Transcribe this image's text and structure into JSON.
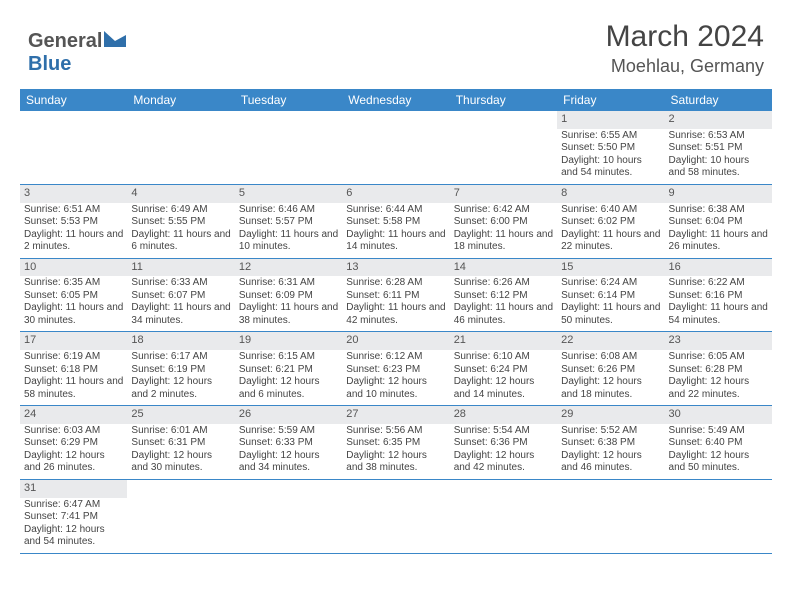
{
  "brand": {
    "part1": "General",
    "part2": "Blue"
  },
  "title": "March 2024",
  "location": "Moehlau, Germany",
  "colors": {
    "header_bg": "#3a87c8",
    "header_text": "#ffffff",
    "row_divider": "#3a87c8",
    "shade_bg": "#e9eaec",
    "text": "#444444",
    "brand_gray": "#555555",
    "brand_blue": "#2f6faa"
  },
  "dow": [
    "Sunday",
    "Monday",
    "Tuesday",
    "Wednesday",
    "Thursday",
    "Friday",
    "Saturday"
  ],
  "weeks": [
    [
      {
        "n": "",
        "sr": "",
        "ss": "",
        "dl": ""
      },
      {
        "n": "",
        "sr": "",
        "ss": "",
        "dl": ""
      },
      {
        "n": "",
        "sr": "",
        "ss": "",
        "dl": ""
      },
      {
        "n": "",
        "sr": "",
        "ss": "",
        "dl": ""
      },
      {
        "n": "",
        "sr": "",
        "ss": "",
        "dl": ""
      },
      {
        "n": "1",
        "sr": "Sunrise: 6:55 AM",
        "ss": "Sunset: 5:50 PM",
        "dl": "Daylight: 10 hours and 54 minutes."
      },
      {
        "n": "2",
        "sr": "Sunrise: 6:53 AM",
        "ss": "Sunset: 5:51 PM",
        "dl": "Daylight: 10 hours and 58 minutes."
      }
    ],
    [
      {
        "n": "3",
        "sr": "Sunrise: 6:51 AM",
        "ss": "Sunset: 5:53 PM",
        "dl": "Daylight: 11 hours and 2 minutes."
      },
      {
        "n": "4",
        "sr": "Sunrise: 6:49 AM",
        "ss": "Sunset: 5:55 PM",
        "dl": "Daylight: 11 hours and 6 minutes."
      },
      {
        "n": "5",
        "sr": "Sunrise: 6:46 AM",
        "ss": "Sunset: 5:57 PM",
        "dl": "Daylight: 11 hours and 10 minutes."
      },
      {
        "n": "6",
        "sr": "Sunrise: 6:44 AM",
        "ss": "Sunset: 5:58 PM",
        "dl": "Daylight: 11 hours and 14 minutes."
      },
      {
        "n": "7",
        "sr": "Sunrise: 6:42 AM",
        "ss": "Sunset: 6:00 PM",
        "dl": "Daylight: 11 hours and 18 minutes."
      },
      {
        "n": "8",
        "sr": "Sunrise: 6:40 AM",
        "ss": "Sunset: 6:02 PM",
        "dl": "Daylight: 11 hours and 22 minutes."
      },
      {
        "n": "9",
        "sr": "Sunrise: 6:38 AM",
        "ss": "Sunset: 6:04 PM",
        "dl": "Daylight: 11 hours and 26 minutes."
      }
    ],
    [
      {
        "n": "10",
        "sr": "Sunrise: 6:35 AM",
        "ss": "Sunset: 6:05 PM",
        "dl": "Daylight: 11 hours and 30 minutes."
      },
      {
        "n": "11",
        "sr": "Sunrise: 6:33 AM",
        "ss": "Sunset: 6:07 PM",
        "dl": "Daylight: 11 hours and 34 minutes."
      },
      {
        "n": "12",
        "sr": "Sunrise: 6:31 AM",
        "ss": "Sunset: 6:09 PM",
        "dl": "Daylight: 11 hours and 38 minutes."
      },
      {
        "n": "13",
        "sr": "Sunrise: 6:28 AM",
        "ss": "Sunset: 6:11 PM",
        "dl": "Daylight: 11 hours and 42 minutes."
      },
      {
        "n": "14",
        "sr": "Sunrise: 6:26 AM",
        "ss": "Sunset: 6:12 PM",
        "dl": "Daylight: 11 hours and 46 minutes."
      },
      {
        "n": "15",
        "sr": "Sunrise: 6:24 AM",
        "ss": "Sunset: 6:14 PM",
        "dl": "Daylight: 11 hours and 50 minutes."
      },
      {
        "n": "16",
        "sr": "Sunrise: 6:22 AM",
        "ss": "Sunset: 6:16 PM",
        "dl": "Daylight: 11 hours and 54 minutes."
      }
    ],
    [
      {
        "n": "17",
        "sr": "Sunrise: 6:19 AM",
        "ss": "Sunset: 6:18 PM",
        "dl": "Daylight: 11 hours and 58 minutes."
      },
      {
        "n": "18",
        "sr": "Sunrise: 6:17 AM",
        "ss": "Sunset: 6:19 PM",
        "dl": "Daylight: 12 hours and 2 minutes."
      },
      {
        "n": "19",
        "sr": "Sunrise: 6:15 AM",
        "ss": "Sunset: 6:21 PM",
        "dl": "Daylight: 12 hours and 6 minutes."
      },
      {
        "n": "20",
        "sr": "Sunrise: 6:12 AM",
        "ss": "Sunset: 6:23 PM",
        "dl": "Daylight: 12 hours and 10 minutes."
      },
      {
        "n": "21",
        "sr": "Sunrise: 6:10 AM",
        "ss": "Sunset: 6:24 PM",
        "dl": "Daylight: 12 hours and 14 minutes."
      },
      {
        "n": "22",
        "sr": "Sunrise: 6:08 AM",
        "ss": "Sunset: 6:26 PM",
        "dl": "Daylight: 12 hours and 18 minutes."
      },
      {
        "n": "23",
        "sr": "Sunrise: 6:05 AM",
        "ss": "Sunset: 6:28 PM",
        "dl": "Daylight: 12 hours and 22 minutes."
      }
    ],
    [
      {
        "n": "24",
        "sr": "Sunrise: 6:03 AM",
        "ss": "Sunset: 6:29 PM",
        "dl": "Daylight: 12 hours and 26 minutes."
      },
      {
        "n": "25",
        "sr": "Sunrise: 6:01 AM",
        "ss": "Sunset: 6:31 PM",
        "dl": "Daylight: 12 hours and 30 minutes."
      },
      {
        "n": "26",
        "sr": "Sunrise: 5:59 AM",
        "ss": "Sunset: 6:33 PM",
        "dl": "Daylight: 12 hours and 34 minutes."
      },
      {
        "n": "27",
        "sr": "Sunrise: 5:56 AM",
        "ss": "Sunset: 6:35 PM",
        "dl": "Daylight: 12 hours and 38 minutes."
      },
      {
        "n": "28",
        "sr": "Sunrise: 5:54 AM",
        "ss": "Sunset: 6:36 PM",
        "dl": "Daylight: 12 hours and 42 minutes."
      },
      {
        "n": "29",
        "sr": "Sunrise: 5:52 AM",
        "ss": "Sunset: 6:38 PM",
        "dl": "Daylight: 12 hours and 46 minutes."
      },
      {
        "n": "30",
        "sr": "Sunrise: 5:49 AM",
        "ss": "Sunset: 6:40 PM",
        "dl": "Daylight: 12 hours and 50 minutes."
      }
    ],
    [
      {
        "n": "31",
        "sr": "Sunrise: 6:47 AM",
        "ss": "Sunset: 7:41 PM",
        "dl": "Daylight: 12 hours and 54 minutes."
      },
      {
        "n": "",
        "sr": "",
        "ss": "",
        "dl": ""
      },
      {
        "n": "",
        "sr": "",
        "ss": "",
        "dl": ""
      },
      {
        "n": "",
        "sr": "",
        "ss": "",
        "dl": ""
      },
      {
        "n": "",
        "sr": "",
        "ss": "",
        "dl": ""
      },
      {
        "n": "",
        "sr": "",
        "ss": "",
        "dl": ""
      },
      {
        "n": "",
        "sr": "",
        "ss": "",
        "dl": ""
      }
    ]
  ]
}
